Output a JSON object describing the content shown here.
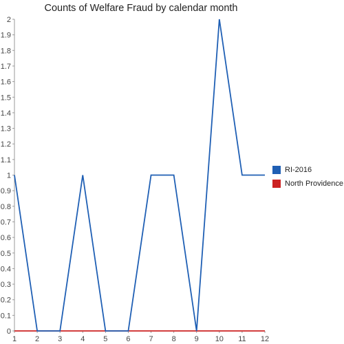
{
  "chart_data": {
    "type": "line",
    "title": "Counts of Welfare Fraud by calendar month",
    "xlabel": "",
    "ylabel": "",
    "categories": [
      "1",
      "2",
      "3",
      "4",
      "5",
      "6",
      "7",
      "8",
      "9",
      "10",
      "11",
      "12"
    ],
    "series": [
      {
        "name": "RI-2016",
        "color": "#1f5fb4",
        "values": [
          1,
          0,
          0,
          1,
          0,
          0,
          1,
          1,
          0,
          2,
          1,
          1
        ]
      },
      {
        "name": "North Providence",
        "color": "#cc2222",
        "values": [
          0,
          0,
          0,
          0,
          0,
          0,
          0,
          0,
          0,
          0,
          0,
          0
        ]
      }
    ],
    "ylim": [
      0,
      2
    ],
    "yticks": [
      "0",
      "0.1",
      "0.2",
      "0.3",
      "0.4",
      "0.5",
      "0.6",
      "0.7",
      "0.8",
      "0.9",
      "1",
      "1.1",
      "1.2",
      "1.3",
      "1.4",
      "1.5",
      "1.6",
      "1.7",
      "1.8",
      "1.9",
      "2"
    ],
    "grid": false,
    "legend_position": "right"
  }
}
